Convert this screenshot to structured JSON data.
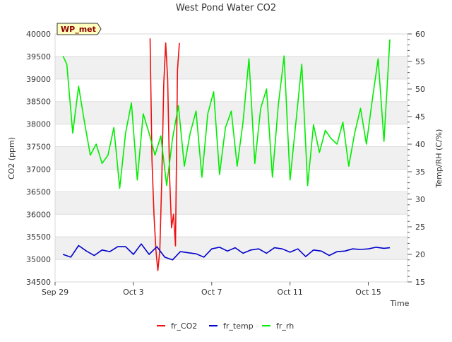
{
  "chart_data": {
    "type": "line",
    "title": "West Pond Water CO2",
    "xlabel": "Time",
    "ylabel_left": "CO2 (ppm)",
    "ylabel_right": "Temp/RH (C/%)",
    "badge": "WP_met",
    "x_range_days": [
      0,
      18
    ],
    "x_ticks": [
      {
        "day": 0,
        "label": "Sep 29"
      },
      {
        "day": 4,
        "label": "Oct 3"
      },
      {
        "day": 8,
        "label": "Oct 7"
      },
      {
        "day": 12,
        "label": "Oct 11"
      },
      {
        "day": 16,
        "label": "Oct 15"
      }
    ],
    "ylim_left": [
      34500,
      40000
    ],
    "yticks_left": [
      34500,
      35000,
      35500,
      36000,
      36500,
      37000,
      37500,
      38000,
      38500,
      39000,
      39500,
      40000
    ],
    "ylim_right": [
      15,
      60
    ],
    "yticks_right": [
      15,
      20,
      25,
      30,
      35,
      40,
      45,
      50,
      55,
      60
    ],
    "grid": true,
    "legend_position": "bottom",
    "series": [
      {
        "name": "fr_CO2",
        "axis": "left",
        "color": "#ee1111",
        "x": [
          4.85,
          4.95,
          5.05,
          5.15,
          5.25,
          5.35,
          5.45,
          5.55,
          5.65,
          5.75,
          5.85,
          5.95,
          6.05,
          6.15,
          6.25,
          6.35,
          6.45,
          6.55,
          6.65
        ],
        "y": [
          39900,
          37200,
          36000,
          35200,
          34750,
          35200,
          36800,
          38900,
          39800,
          39000,
          36800,
          35700,
          36000,
          35300,
          39200,
          39800,
          null,
          null,
          null
        ]
      },
      {
        "name": "fr_temp",
        "axis": "right",
        "color": "#0000cc",
        "x": [
          0.4,
          0.8,
          1.2,
          1.6,
          2.0,
          2.4,
          2.8,
          3.2,
          3.6,
          4.0,
          4.4,
          4.8,
          5.2,
          5.6,
          6.0,
          6.4,
          6.8,
          7.2,
          7.6,
          8.0,
          8.4,
          8.8,
          9.2,
          9.6,
          10.0,
          10.4,
          10.8,
          11.2,
          11.6,
          12.0,
          12.4,
          12.8,
          13.2,
          13.6,
          14.0,
          14.4,
          14.8,
          15.2,
          15.6,
          16.0,
          16.4,
          16.8,
          17.1
        ],
        "y": [
          20.0,
          19.5,
          21.6,
          20.6,
          19.8,
          20.8,
          20.5,
          21.4,
          21.4,
          20.0,
          21.9,
          20.0,
          21.4,
          19.5,
          19.0,
          20.5,
          20.3,
          20.1,
          19.5,
          21.0,
          21.3,
          20.6,
          21.2,
          20.2,
          20.8,
          21.0,
          20.2,
          21.2,
          21.0,
          20.4,
          21.0,
          19.6,
          20.8,
          20.6,
          19.8,
          20.5,
          20.6,
          21.0,
          20.9,
          21.0,
          21.3,
          21.1,
          21.2
        ]
      },
      {
        "name": "fr_rh",
        "axis": "right",
        "color": "#00ee00",
        "x": [
          0.4,
          0.6,
          0.9,
          1.2,
          1.5,
          1.8,
          2.1,
          2.4,
          2.7,
          3.0,
          3.3,
          3.6,
          3.9,
          4.2,
          4.5,
          4.8,
          5.1,
          5.4,
          5.7,
          6.0,
          6.3,
          6.6,
          6.9,
          7.2,
          7.5,
          7.8,
          8.1,
          8.4,
          8.7,
          9.0,
          9.3,
          9.6,
          9.9,
          10.2,
          10.5,
          10.8,
          11.1,
          11.4,
          11.7,
          12.0,
          12.3,
          12.6,
          12.9,
          13.2,
          13.5,
          13.8,
          14.1,
          14.4,
          14.7,
          15.0,
          15.3,
          15.6,
          15.9,
          16.2,
          16.5,
          16.8,
          17.1
        ],
        "y": [
          56.0,
          54.5,
          42.0,
          50.5,
          44.0,
          38.0,
          40.0,
          36.5,
          38.0,
          43.0,
          32.0,
          42.0,
          47.5,
          33.5,
          45.5,
          42.0,
          38.0,
          41.5,
          32.5,
          41.0,
          47.0,
          36.0,
          42.0,
          46.0,
          34.0,
          45.5,
          49.5,
          34.5,
          43.0,
          46.0,
          36.0,
          44.0,
          55.5,
          36.5,
          46.5,
          50.0,
          34.0,
          47.0,
          56.0,
          33.5,
          44.0,
          54.5,
          32.5,
          43.5,
          38.5,
          42.5,
          41.0,
          40.0,
          44.0,
          36.0,
          42.0,
          46.5,
          40.0,
          48.0,
          55.5,
          40.5,
          59.0
        ]
      }
    ]
  }
}
